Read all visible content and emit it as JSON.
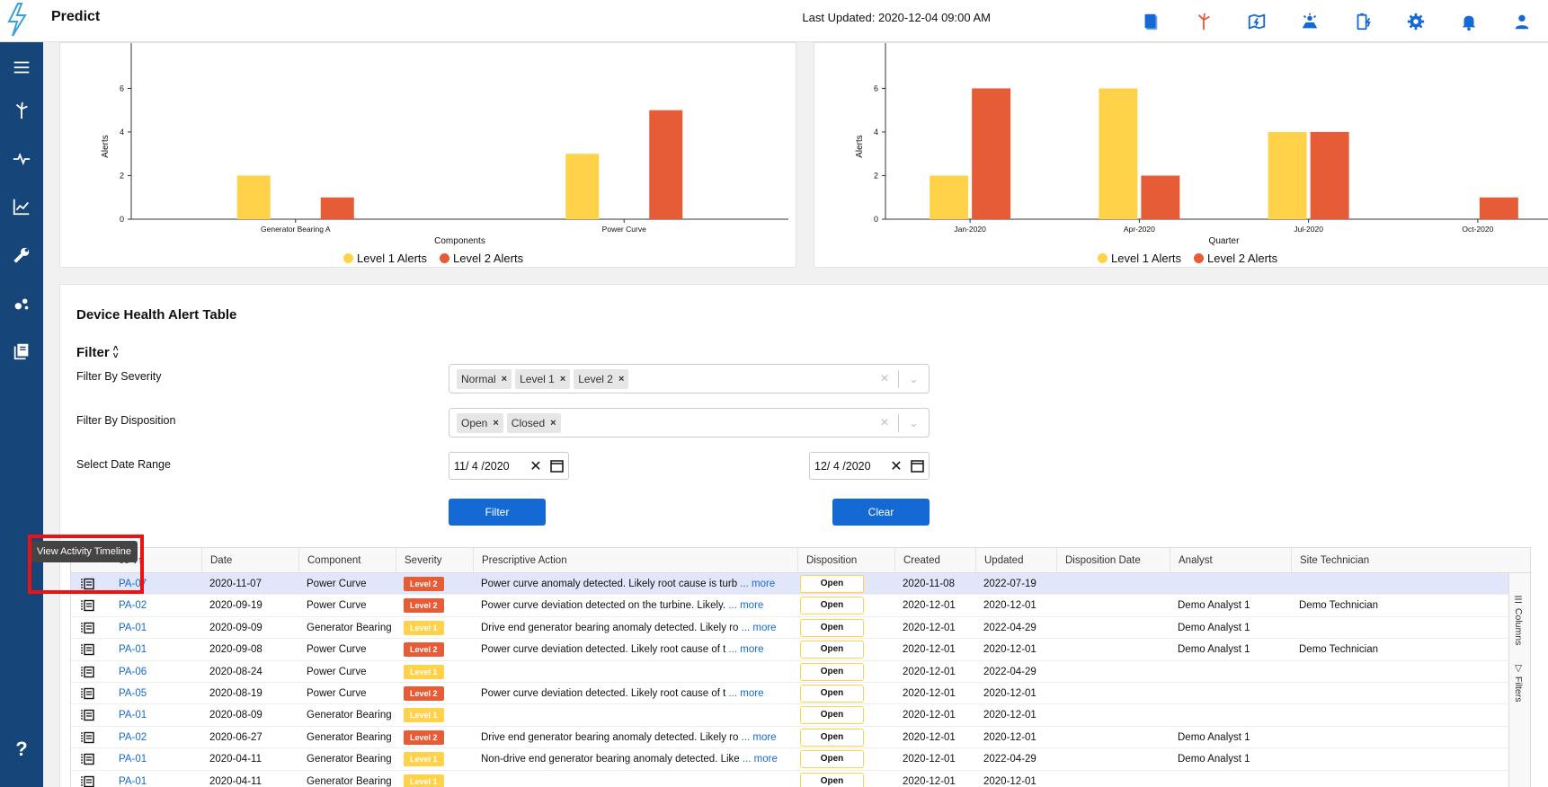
{
  "app": {
    "title": "Predict",
    "last_updated": "Last Updated: 2020-12-04 09:00 AM"
  },
  "colors": {
    "sidebar": "#16457a",
    "accent": "#1469d4",
    "level1": "#ffd24a",
    "level2": "#e65c37"
  },
  "top_icons": [
    "book-icon",
    "wind-turbine-icon",
    "map-lightning-icon",
    "solar-panel-icon",
    "battery-icon",
    "settings-icon",
    "notification-bell-icon",
    "user-icon"
  ],
  "sidebar_icons": [
    "menu-icon",
    "wind-turbine-icon",
    "pulse-icon",
    "line-chart-icon",
    "wrench-icon",
    "network-icon",
    "library-icon",
    "help-icon"
  ],
  "help_label": "?",
  "chart_data": [
    {
      "type": "bar",
      "xlabel": "Components",
      "ylabel": "Alerts",
      "categories": [
        "Generator Bearing A",
        "Power Curve"
      ],
      "series": [
        {
          "name": "Level 1 Alerts",
          "color": "#ffd24a",
          "values": [
            2,
            3
          ]
        },
        {
          "name": "Level 2 Alerts",
          "color": "#e65c37",
          "values": [
            1,
            5
          ]
        }
      ],
      "yticks": [
        0,
        2,
        4,
        6
      ],
      "ylim": [
        0,
        7.5
      ],
      "legend": "bottom-center"
    },
    {
      "type": "bar",
      "xlabel": "Quarter",
      "ylabel": "Alerts",
      "categories": [
        "Jan-2020",
        "Apr-2020",
        "Jul-2020",
        "Oct-2020"
      ],
      "series": [
        {
          "name": "Level 1 Alerts",
          "color": "#ffd24a",
          "values": [
            2,
            6,
            4,
            0
          ]
        },
        {
          "name": "Level 2 Alerts",
          "color": "#e65c37",
          "values": [
            6,
            2,
            4,
            1
          ]
        }
      ],
      "yticks": [
        0,
        2,
        4,
        6
      ],
      "ylim": [
        0,
        7.5
      ],
      "legend": "bottom-center"
    }
  ],
  "table_section": {
    "title": "Device Health Alert Table",
    "filter_label": "Filter",
    "severity_label": "Filter By Severity",
    "severity_chips": [
      "Normal",
      "Level 1",
      "Level 2"
    ],
    "disposition_label": "Filter By Disposition",
    "disposition_chips": [
      "Open",
      "Closed"
    ],
    "date_range_label": "Select Date Range",
    "date_from": "11/ 4 /2020",
    "date_to": "12/ 4 /2020",
    "filter_button": "Filter",
    "clear_button": "Clear"
  },
  "grid": {
    "columns": [
      "ce",
      "Date",
      "Component",
      "Severity",
      "Prescriptive Action",
      "Disposition",
      "Created",
      "Updated",
      "Disposition Date",
      "Analyst",
      "Site Technician"
    ],
    "side_tabs": [
      "Columns",
      "Filters"
    ],
    "more_label": "... more",
    "rows": [
      {
        "device": "PA-07",
        "date": "2020-11-07",
        "component": "Power Curve",
        "severity": "Level 2",
        "action": "Power curve anomaly detected. Likely root cause is turb",
        "disposition": "Open",
        "created": "2020-11-08",
        "updated": "2022-07-19",
        "disposition_date": "",
        "analyst": "",
        "technician": "",
        "selected": true
      },
      {
        "device": "PA-02",
        "date": "2020-09-19",
        "component": "Power Curve",
        "severity": "Level 2",
        "action": "Power curve deviation detected on the turbine. Likely.",
        "disposition": "Open",
        "created": "2020-12-01",
        "updated": "2020-12-01",
        "disposition_date": "",
        "analyst": "Demo Analyst 1",
        "technician": "Demo Technician"
      },
      {
        "device": "PA-01",
        "date": "2020-09-09",
        "component": "Generator Bearing",
        "severity": "Level 1",
        "action": "Drive end generator bearing anomaly detected. Likely ro",
        "disposition": "Open",
        "created": "2020-12-01",
        "updated": "2022-04-29",
        "disposition_date": "",
        "analyst": "Demo Analyst 1",
        "technician": ""
      },
      {
        "device": "PA-01",
        "date": "2020-09-08",
        "component": "Power Curve",
        "severity": "Level 2",
        "action": "Power curve deviation detected. Likely root cause of t",
        "disposition": "Open",
        "created": "2020-12-01",
        "updated": "2020-12-01",
        "disposition_date": "",
        "analyst": "Demo Analyst 1",
        "technician": "Demo Technician"
      },
      {
        "device": "PA-06",
        "date": "2020-08-24",
        "component": "Power Curve",
        "severity": "Level 1",
        "action": "",
        "disposition": "Open",
        "created": "2020-12-01",
        "updated": "2022-04-29",
        "disposition_date": "",
        "analyst": "",
        "technician": ""
      },
      {
        "device": "PA-05",
        "date": "2020-08-19",
        "component": "Power Curve",
        "severity": "Level 2",
        "action": "Power curve deviation detected. Likely root cause of t",
        "disposition": "Open",
        "created": "2020-12-01",
        "updated": "2020-12-01",
        "disposition_date": "",
        "analyst": "",
        "technician": ""
      },
      {
        "device": "PA-01",
        "date": "2020-08-09",
        "component": "Generator Bearing",
        "severity": "Level 1",
        "action": "",
        "disposition": "Open",
        "created": "2020-12-01",
        "updated": "2020-12-01",
        "disposition_date": "",
        "analyst": "",
        "technician": ""
      },
      {
        "device": "PA-02",
        "date": "2020-06-27",
        "component": "Generator Bearing",
        "severity": "Level 2",
        "action": "Drive end generator bearing anomaly detected. Likely ro",
        "disposition": "Open",
        "created": "2020-12-01",
        "updated": "2020-12-01",
        "disposition_date": "",
        "analyst": "Demo Analyst 1",
        "technician": ""
      },
      {
        "device": "PA-01",
        "date": "2020-04-11",
        "component": "Generator Bearing",
        "severity": "Level 1",
        "action": "Non-drive end generator bearing anomaly detected. Like",
        "disposition": "Open",
        "created": "2020-12-01",
        "updated": "2022-04-29",
        "disposition_date": "",
        "analyst": "Demo Analyst 1",
        "technician": ""
      },
      {
        "device": "PA-01",
        "date": "2020-04-11",
        "component": "Generator Bearing",
        "severity": "Level 1",
        "action": "",
        "disposition": "Open",
        "created": "2020-12-01",
        "updated": "2020-12-01",
        "disposition_date": "",
        "analyst": "",
        "technician": ""
      }
    ]
  },
  "tooltip": {
    "text": "View Activity Timeline"
  }
}
